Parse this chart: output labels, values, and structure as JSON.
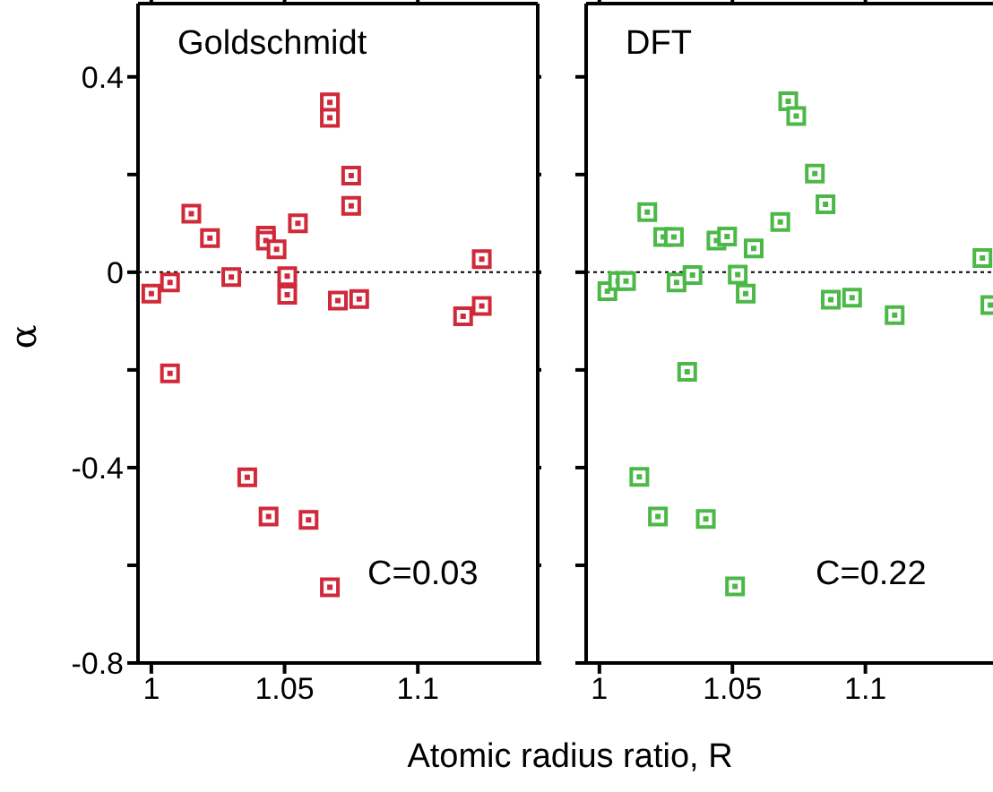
{
  "chart_data": [
    {
      "type": "scatter",
      "title": "Goldschmidt",
      "xlabel": "Atomic radius ratio, R",
      "ylabel": "α",
      "marker": "square",
      "annotations": [
        "C=0.03"
      ],
      "xlim": [
        0.995,
        1.145
      ],
      "xticks": [
        1,
        1.05,
        1.1
      ],
      "ylim": [
        -0.8,
        0.55
      ],
      "yticks": [
        -0.8,
        {
          "value": -0.6,
          "label": null
        },
        -0.4,
        {
          "value": -0.2,
          "label": null
        },
        0,
        {
          "value": 0.2,
          "label": null
        },
        0.4
      ],
      "ref_lines": [
        {
          "axis": "y",
          "value": 0,
          "color": "#000000",
          "line_style": "dotted"
        }
      ],
      "series": [
        {
          "color": "#d0293a",
          "x": [
            1.0,
            1.007,
            1.015,
            1.022,
            1.03,
            1.043,
            1.043,
            1.047,
            1.051,
            1.051,
            1.055,
            1.067,
            1.067,
            1.075,
            1.075,
            1.07,
            1.078,
            1.117,
            1.124,
            1.124,
            1.007,
            1.036,
            1.044,
            1.059,
            1.067
          ],
          "values": [
            -0.044,
            -0.021,
            0.12,
            0.07,
            -0.01,
            0.075,
            0.065,
            0.047,
            -0.008,
            -0.046,
            0.1,
            0.348,
            0.316,
            0.198,
            0.136,
            -0.058,
            -0.055,
            -0.09,
            0.027,
            -0.069,
            -0.207,
            -0.42,
            -0.5,
            -0.507,
            -0.645
          ]
        }
      ]
    },
    {
      "type": "scatter",
      "title": "DFT",
      "marker": "square",
      "annotations": [
        "C=0.22"
      ],
      "tick_labels": "x",
      "xlim": [
        0.995,
        1.15
      ],
      "xticks": [
        1,
        1.05,
        1.1
      ],
      "ylim": [
        -0.8,
        0.55
      ],
      "yticks": [
        -0.8,
        {
          "value": -0.6,
          "label": null
        },
        -0.4,
        {
          "value": -0.2,
          "label": null
        },
        0,
        {
          "value": 0.2,
          "label": null
        },
        0.4
      ],
      "ref_lines": [
        {
          "axis": "y",
          "value": 0,
          "color": "#000000",
          "line_style": "dotted"
        }
      ],
      "series": [
        {
          "color": "#4cb848",
          "x": [
            1.003,
            1.007,
            1.01,
            1.018,
            1.024,
            1.028,
            1.029,
            1.035,
            1.044,
            1.048,
            1.058,
            1.052,
            1.055,
            1.068,
            1.071,
            1.074,
            1.081,
            1.085,
            1.087,
            1.095,
            1.111,
            1.144,
            1.147,
            1.033,
            1.015,
            1.022,
            1.04,
            1.051
          ],
          "values": [
            -0.039,
            -0.018,
            -0.018,
            0.123,
            0.072,
            0.072,
            -0.021,
            -0.006,
            0.065,
            0.073,
            0.049,
            -0.005,
            -0.044,
            0.103,
            0.35,
            0.32,
            0.202,
            0.139,
            -0.056,
            -0.052,
            -0.088,
            0.029,
            -0.067,
            -0.204,
            -0.419,
            -0.5,
            -0.505,
            -0.643
          ]
        }
      ]
    }
  ]
}
